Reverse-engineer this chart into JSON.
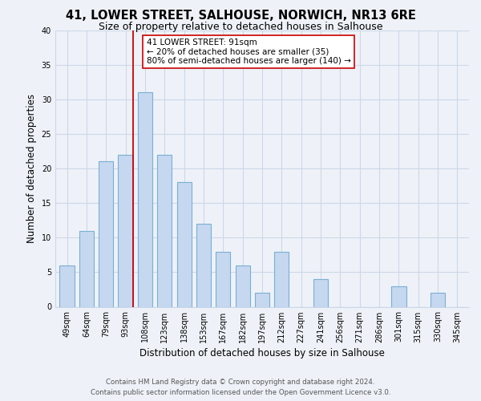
{
  "title": "41, LOWER STREET, SALHOUSE, NORWICH, NR13 6RE",
  "subtitle": "Size of property relative to detached houses in Salhouse",
  "xlabel": "Distribution of detached houses by size in Salhouse",
  "ylabel": "Number of detached properties",
  "bar_labels": [
    "49sqm",
    "64sqm",
    "79sqm",
    "93sqm",
    "108sqm",
    "123sqm",
    "138sqm",
    "153sqm",
    "167sqm",
    "182sqm",
    "197sqm",
    "212sqm",
    "227sqm",
    "241sqm",
    "256sqm",
    "271sqm",
    "286sqm",
    "301sqm",
    "315sqm",
    "330sqm",
    "345sqm"
  ],
  "bar_values": [
    6,
    11,
    21,
    22,
    31,
    22,
    18,
    12,
    8,
    6,
    2,
    8,
    0,
    4,
    0,
    0,
    0,
    3,
    0,
    2,
    0
  ],
  "bar_color": "#c5d8f0",
  "bar_edge_color": "#7aafd4",
  "vline_x_index": 3,
  "vline_color": "#cc0000",
  "ylim": [
    0,
    40
  ],
  "yticks": [
    0,
    5,
    10,
    15,
    20,
    25,
    30,
    35,
    40
  ],
  "annotation_title": "41 LOWER STREET: 91sqm",
  "annotation_line1": "← 20% of detached houses are smaller (35)",
  "annotation_line2": "80% of semi-detached houses are larger (140) →",
  "annotation_box_color": "#ffffff",
  "annotation_box_edge": "#cc0000",
  "footer_line1": "Contains HM Land Registry data © Crown copyright and database right 2024.",
  "footer_line2": "Contains public sector information licensed under the Open Government Licence v3.0.",
  "background_color": "#eef2f8",
  "grid_color": "#cdd7e8",
  "title_fontsize": 10.5,
  "subtitle_fontsize": 9,
  "axis_label_fontsize": 8.5,
  "tick_fontsize": 7,
  "annotation_fontsize": 7.5,
  "footer_fontsize": 6.2
}
